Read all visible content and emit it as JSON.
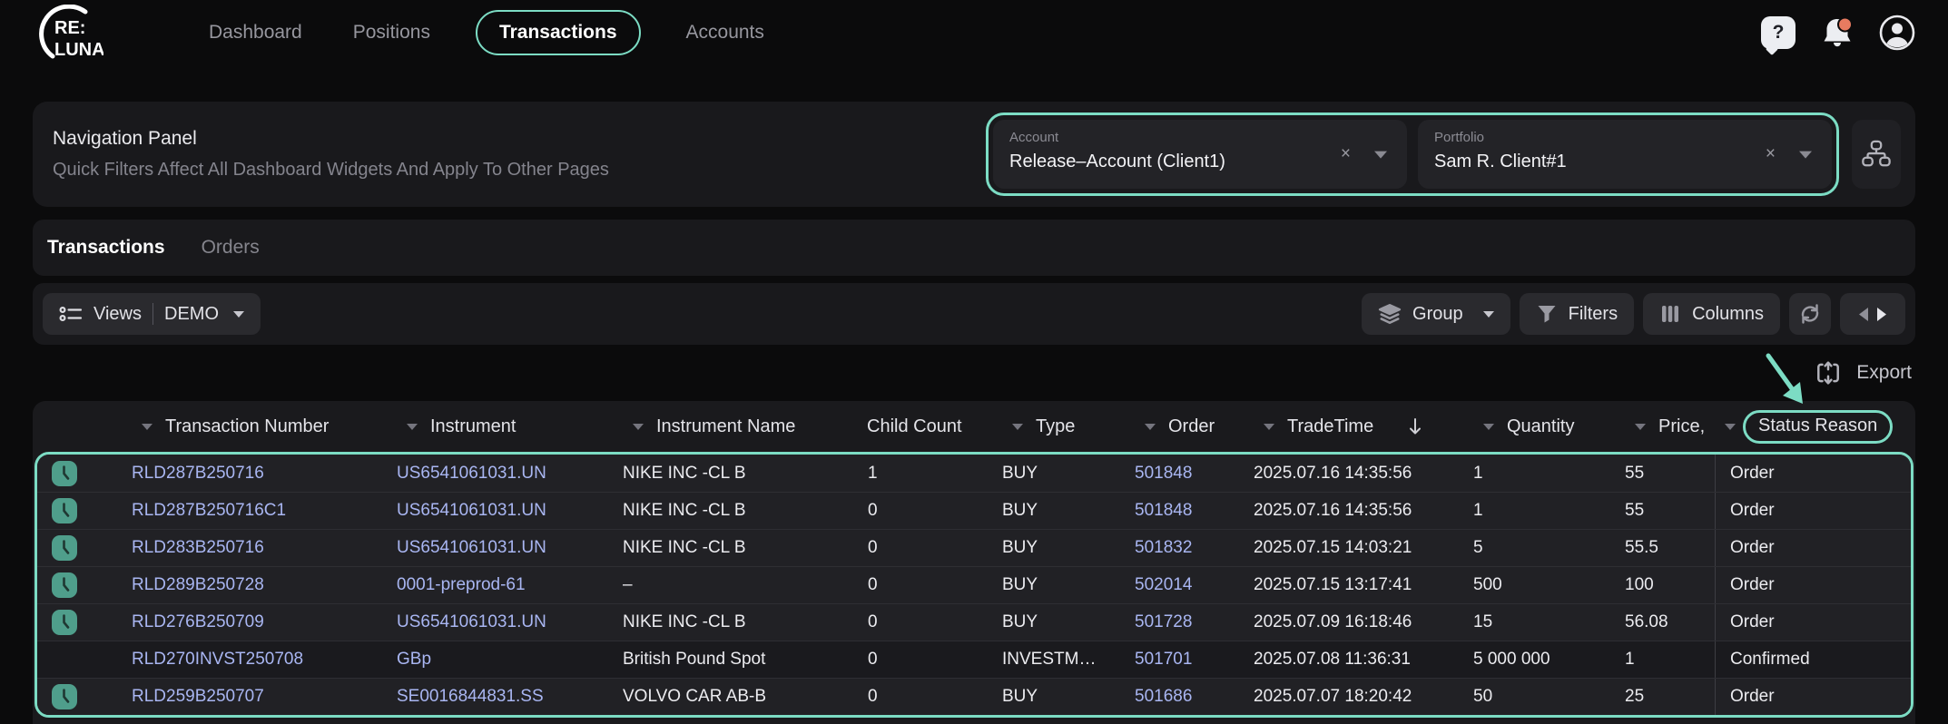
{
  "colors": {
    "accent": "#7cdcc4",
    "link": "#a9b6f2",
    "notification_dot": "#e87b60",
    "clock_badge": "#4f9e8b"
  },
  "topbar": {
    "logo_line1": "RE:",
    "logo_line2": "LUNA",
    "nav": [
      {
        "label": "Dashboard",
        "active": false
      },
      {
        "label": "Positions",
        "active": false
      },
      {
        "label": "Transactions",
        "active": true
      },
      {
        "label": "Accounts",
        "active": false
      }
    ],
    "help_glyph": "?"
  },
  "nav_panel": {
    "title": "Navigation Panel",
    "subtitle": "Quick Filters Affect All Dashboard Widgets And Apply To Other Pages",
    "filters": [
      {
        "label": "Account",
        "value": "Release–Account (Client1)",
        "clear_glyph": "×"
      },
      {
        "label": "Portfolio",
        "value": "Sam R. Client#1",
        "clear_glyph": "×"
      }
    ]
  },
  "tabs": [
    {
      "label": "Transactions",
      "active": true
    },
    {
      "label": "Orders",
      "active": false
    }
  ],
  "toolbar": {
    "views_label": "Views",
    "views_value": "DEMO",
    "group_label": "Group",
    "filters_label": "Filters",
    "columns_label": "Columns",
    "export_label": "Export"
  },
  "table": {
    "columns": [
      {
        "key": "icon",
        "label": "",
        "menu": false
      },
      {
        "key": "txn",
        "label": "Transaction Number",
        "menu": true
      },
      {
        "key": "instrument",
        "label": "Instrument",
        "menu": true
      },
      {
        "key": "name",
        "label": "Instrument Name",
        "menu": true
      },
      {
        "key": "child",
        "label": "Child Count",
        "menu": false
      },
      {
        "key": "type",
        "label": "Type",
        "menu": true
      },
      {
        "key": "order",
        "label": "Order",
        "menu": true
      },
      {
        "key": "tradetime",
        "label": "TradeTime",
        "menu": true,
        "sort": "desc"
      },
      {
        "key": "quantity",
        "label": "Quantity",
        "menu": true
      },
      {
        "key": "price",
        "label": "Price,",
        "menu": true
      },
      {
        "key": "status",
        "label": "Status Reason",
        "menu": true,
        "highlighted": true
      }
    ],
    "rows": [
      {
        "icon": true,
        "dark": false,
        "txn": "RLD287B250716",
        "instrument": "US6541061031.UN",
        "name": "NIKE INC -CL B",
        "child": "1",
        "type": "BUY",
        "order": "501848",
        "tradetime": "2025.07.16 14:35:56",
        "quantity": "1",
        "price": "55",
        "status": "Order"
      },
      {
        "icon": true,
        "dark": false,
        "txn": "RLD287B250716C1",
        "instrument": "US6541061031.UN",
        "name": "NIKE INC -CL B",
        "child": "0",
        "type": "BUY",
        "order": "501848",
        "tradetime": "2025.07.16 14:35:56",
        "quantity": "1",
        "price": "55",
        "status": "Order"
      },
      {
        "icon": true,
        "dark": false,
        "txn": "RLD283B250716",
        "instrument": "US6541061031.UN",
        "name": "NIKE INC -CL B",
        "child": "0",
        "type": "BUY",
        "order": "501832",
        "tradetime": "2025.07.15 14:03:21",
        "quantity": "5",
        "price": "55.5",
        "status": "Order"
      },
      {
        "icon": true,
        "dark": false,
        "txn": "RLD289B250728",
        "instrument": "0001-preprod-61",
        "name": "–",
        "child": "0",
        "type": "BUY",
        "order": "502014",
        "tradetime": "2025.07.15 13:17:41",
        "quantity": "500",
        "price": "100",
        "status": "Order"
      },
      {
        "icon": true,
        "dark": false,
        "txn": "RLD276B250709",
        "instrument": "US6541061031.UN",
        "name": "NIKE INC -CL B",
        "child": "0",
        "type": "BUY",
        "order": "501728",
        "tradetime": "2025.07.09 16:18:46",
        "quantity": "15",
        "price": "56.08",
        "status": "Order"
      },
      {
        "icon": false,
        "dark": true,
        "txn": "RLD270INVST250708",
        "instrument": "GBp",
        "name": "British Pound Spot",
        "child": "0",
        "type": "INVESTM…",
        "order": "501701",
        "tradetime": "2025.07.08 11:36:31",
        "quantity": "5 000 000",
        "price": "1",
        "status": "Confirmed"
      },
      {
        "icon": true,
        "dark": false,
        "txn": "RLD259B250707",
        "instrument": "SE0016844831.SS",
        "name": "VOLVO CAR AB-B",
        "child": "0",
        "type": "BUY",
        "order": "501686",
        "tradetime": "2025.07.07 18:20:42",
        "quantity": "50",
        "price": "25",
        "status": "Order"
      }
    ]
  }
}
